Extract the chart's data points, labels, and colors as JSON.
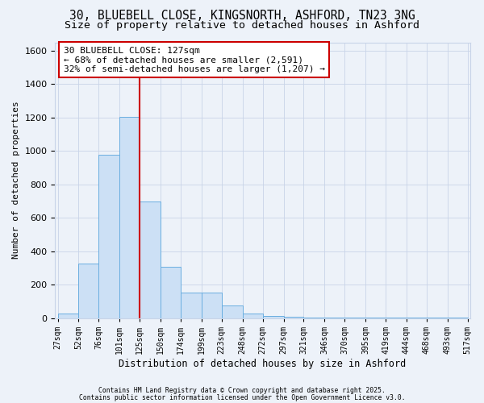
{
  "title1": "30, BLUEBELL CLOSE, KINGSNORTH, ASHFORD, TN23 3NG",
  "title2": "Size of property relative to detached houses in Ashford",
  "xlabel": "Distribution of detached houses by size in Ashford",
  "ylabel": "Number of detached properties",
  "bar_edges": [
    27,
    52,
    76,
    101,
    125,
    150,
    174,
    199,
    223,
    248,
    272,
    297,
    321,
    346,
    370,
    395,
    419,
    444,
    468,
    493,
    517
  ],
  "bar_heights": [
    25,
    325,
    975,
    1205,
    700,
    305,
    155,
    155,
    75,
    25,
    15,
    10,
    5,
    3,
    3,
    2,
    2,
    2,
    2,
    2
  ],
  "bar_color": "#cce0f5",
  "bar_edgecolor": "#6aaee0",
  "grid_color": "#c8d4e8",
  "vline_x": 125,
  "vline_color": "#cc0000",
  "annotation_text": "30 BLUEBELL CLOSE: 127sqm\n← 68% of detached houses are smaller (2,591)\n32% of semi-detached houses are larger (1,207) →",
  "annotation_box_edgecolor": "#cc0000",
  "annotation_box_facecolor": "#ffffff",
  "ylim": [
    0,
    1650
  ],
  "yticks": [
    0,
    200,
    400,
    600,
    800,
    1000,
    1200,
    1400,
    1600
  ],
  "footer1": "Contains HM Land Registry data © Crown copyright and database right 2025.",
  "footer2": "Contains public sector information licensed under the Open Government Licence v3.0.",
  "bg_color": "#edf2f9",
  "plot_bg_color": "#edf2f9",
  "title1_fontsize": 10.5,
  "title2_fontsize": 9.5,
  "annot_fontsize": 8.0,
  "ylabel_fontsize": 8,
  "xlabel_fontsize": 8.5,
  "ytick_fontsize": 8,
  "xtick_fontsize": 7
}
